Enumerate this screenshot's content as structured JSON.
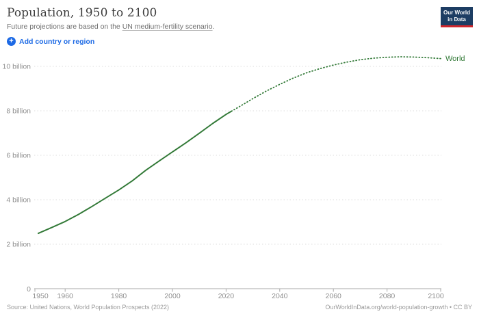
{
  "header": {
    "title": "Population, 1950 to 2100",
    "subtitle_prefix": "Future projections are based on the ",
    "subtitle_link": "UN medium-fertility scenario",
    "subtitle_suffix": ".",
    "add_button_label": "Add country or region",
    "logo_line1": "Our World",
    "logo_line2": "in Data"
  },
  "footer": {
    "source": "Source: United Nations, World Population Prospects (2022)",
    "attribution": "OurWorldInData.org/world-population-growth • CC BY"
  },
  "colors": {
    "series_green": "#337a38",
    "accent_blue": "#1d6ae5",
    "logo_navy": "#1d3d63",
    "logo_red": "#d0262c"
  },
  "chart_data": {
    "type": "line",
    "title": "Population, 1950 to 2100",
    "xlabel": "",
    "ylabel": "",
    "xlim": [
      1950,
      2100
    ],
    "ylim": [
      0,
      10.9
    ],
    "grid": "horizontal-dotted",
    "legend_position": "end-of-line",
    "x_ticks": [
      1950,
      1960,
      1980,
      2000,
      2020,
      2040,
      2060,
      2080,
      2100
    ],
    "y_ticks": [
      {
        "value": 0,
        "label": "0"
      },
      {
        "value": 2,
        "label": "2 billion"
      },
      {
        "value": 4,
        "label": "4 billion"
      },
      {
        "value": 6,
        "label": "6 billion"
      },
      {
        "value": 8,
        "label": "8 billion"
      },
      {
        "value": 10,
        "label": "10 billion"
      }
    ],
    "end_label": "World",
    "series": [
      {
        "name": "World — historical estimates",
        "style": "solid",
        "points": [
          [
            1950,
            2.49
          ],
          [
            1955,
            2.75
          ],
          [
            1960,
            3.02
          ],
          [
            1965,
            3.34
          ],
          [
            1970,
            3.7
          ],
          [
            1975,
            4.07
          ],
          [
            1980,
            4.44
          ],
          [
            1985,
            4.85
          ],
          [
            1990,
            5.32
          ],
          [
            1995,
            5.74
          ],
          [
            2000,
            6.15
          ],
          [
            2005,
            6.56
          ],
          [
            2010,
            6.99
          ],
          [
            2015,
            7.43
          ],
          [
            2020,
            7.84
          ],
          [
            2022,
            7.98
          ]
        ]
      },
      {
        "name": "World — UN medium-fertility projection",
        "style": "dotted",
        "points": [
          [
            2022,
            7.98
          ],
          [
            2025,
            8.19
          ],
          [
            2030,
            8.55
          ],
          [
            2035,
            8.89
          ],
          [
            2040,
            9.19
          ],
          [
            2045,
            9.47
          ],
          [
            2050,
            9.71
          ],
          [
            2055,
            9.9
          ],
          [
            2060,
            10.06
          ],
          [
            2065,
            10.19
          ],
          [
            2070,
            10.3
          ],
          [
            2075,
            10.37
          ],
          [
            2080,
            10.41
          ],
          [
            2085,
            10.43
          ],
          [
            2090,
            10.42
          ],
          [
            2095,
            10.39
          ],
          [
            2100,
            10.35
          ]
        ]
      }
    ]
  }
}
